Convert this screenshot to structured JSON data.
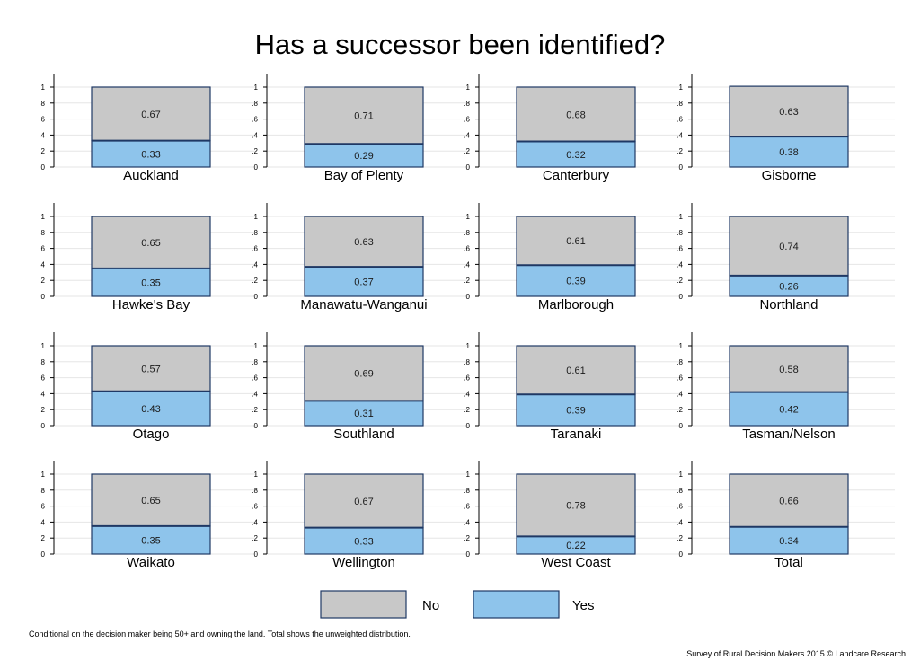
{
  "colors": {
    "no": "#c8c8c8",
    "yes": "#8ec4eb",
    "border": "#1f3864",
    "grid": "#e6e6e6",
    "axis": "#000000"
  },
  "chart_data": {
    "type": "bar",
    "stacked": true,
    "title": "Has a successor been identified?",
    "ylim": [
      0,
      1
    ],
    "yticks": [
      "0",
      ".2",
      ".4",
      ".6",
      ".8",
      "1"
    ],
    "grid": true,
    "legend_position": "bottom",
    "series": [
      {
        "name": "No",
        "color_key": "no"
      },
      {
        "name": "Yes",
        "color_key": "yes"
      }
    ],
    "panels": [
      {
        "label": "Auckland",
        "yes": 0.33,
        "no": 0.67
      },
      {
        "label": "Bay of Plenty",
        "yes": 0.29,
        "no": 0.71
      },
      {
        "label": "Canterbury",
        "yes": 0.32,
        "no": 0.68
      },
      {
        "label": "Gisborne",
        "yes": 0.38,
        "no": 0.63
      },
      {
        "label": "Hawke's Bay",
        "yes": 0.35,
        "no": 0.65
      },
      {
        "label": "Manawatu-Wanganui",
        "yes": 0.37,
        "no": 0.63
      },
      {
        "label": "Marlborough",
        "yes": 0.39,
        "no": 0.61
      },
      {
        "label": "Northland",
        "yes": 0.26,
        "no": 0.74
      },
      {
        "label": "Otago",
        "yes": 0.43,
        "no": 0.57
      },
      {
        "label": "Southland",
        "yes": 0.31,
        "no": 0.69
      },
      {
        "label": "Taranaki",
        "yes": 0.39,
        "no": 0.61
      },
      {
        "label": "Tasman/Nelson",
        "yes": 0.42,
        "no": 0.58
      },
      {
        "label": "Waikato",
        "yes": 0.35,
        "no": 0.65
      },
      {
        "label": "Wellington",
        "yes": 0.33,
        "no": 0.67
      },
      {
        "label": "West Coast",
        "yes": 0.22,
        "no": 0.78
      },
      {
        "label": "Total",
        "yes": 0.34,
        "no": 0.66
      }
    ]
  },
  "legend": {
    "no_label": "No",
    "yes_label": "Yes"
  },
  "footnote": "Conditional on the decision maker being 50+ and owning the land. Total shows the unweighted distribution.",
  "credit": "Survey of Rural Decision Makers 2015 © Landcare Research"
}
